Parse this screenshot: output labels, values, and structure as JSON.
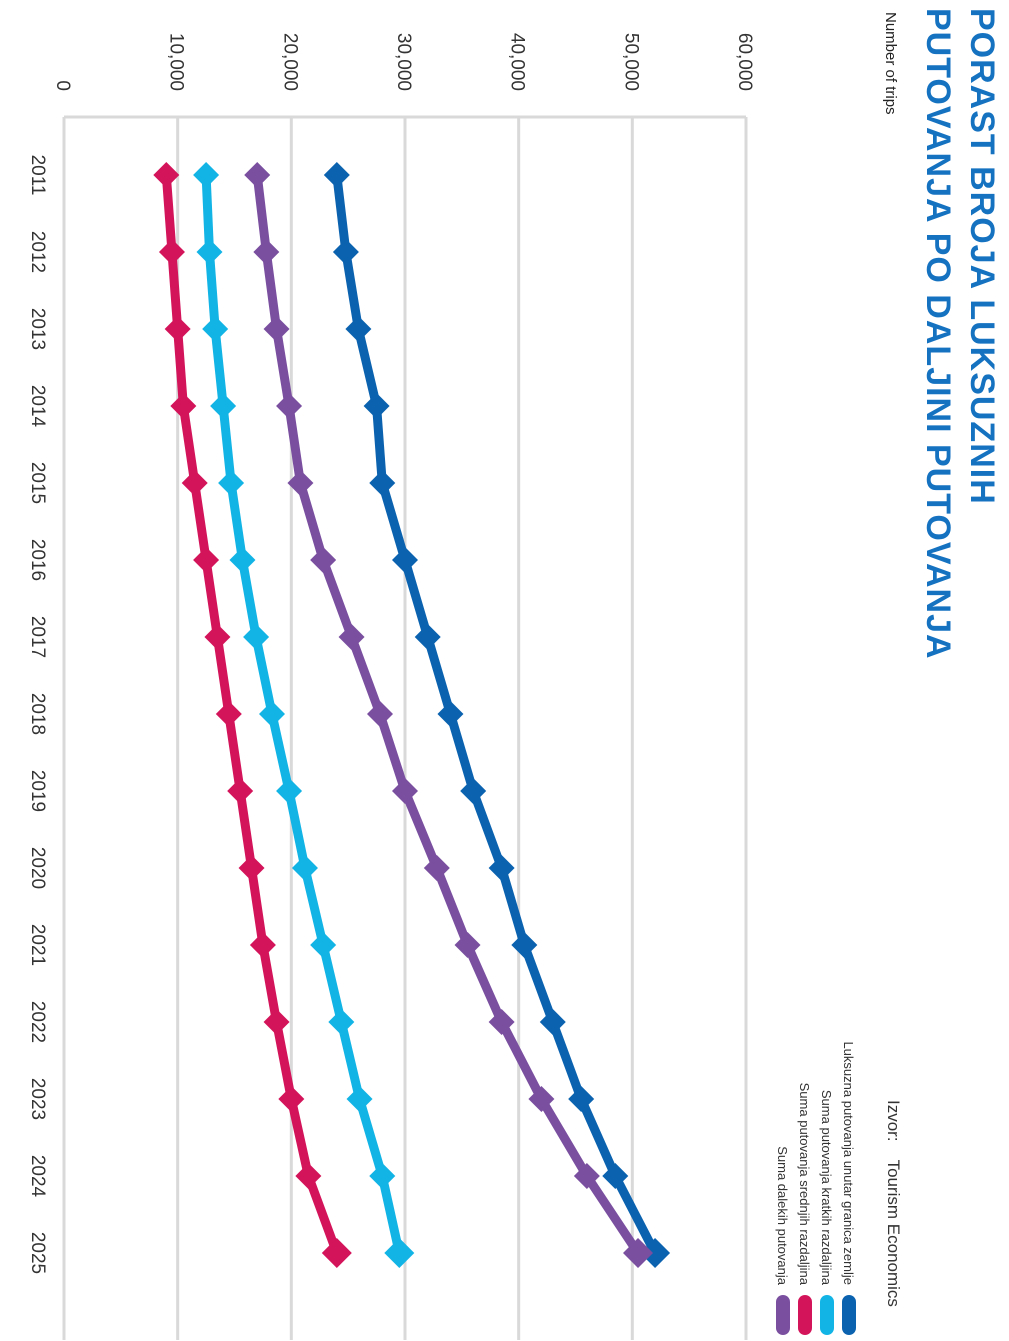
{
  "chart_data": {
    "type": "line",
    "title": "PORAST BROJA LUKSUZNIH PUTOVANJA PO DALJINI PUTOVANJA",
    "title_lines": [
      "PORAST BROJA LUKSUZNIH",
      "PUTOVANJA PO DALJINI PUTOVANJA"
    ],
    "ylabel": "Number of trips",
    "xlabel": "",
    "source_label": "Izvor:",
    "source_value": "Tourism Economics",
    "categories": [
      "2011",
      "2012",
      "2013",
      "2014",
      "2015",
      "2016",
      "2017",
      "2018",
      "2019",
      "2020",
      "2021",
      "2022",
      "2023",
      "2024",
      "2025"
    ],
    "yticks": [
      0,
      10000,
      20000,
      30000,
      40000,
      50000,
      60000
    ],
    "ytick_labels": [
      "0",
      "10,000",
      "20,000",
      "30,000",
      "40,000",
      "50,000",
      "60,000"
    ],
    "ylim": [
      0,
      60000
    ],
    "grid": true,
    "legend_position": "right",
    "series": [
      {
        "name": "Luksuzna putovanja unutar granica zemlje",
        "color": "#0b63b0",
        "values": [
          24000,
          24800,
          25900,
          27500,
          28000,
          30000,
          32000,
          34000,
          36000,
          38500,
          40500,
          43000,
          45500,
          48500,
          52000
        ]
      },
      {
        "name": "Suma putovanja kratkih razdaljina",
        "color": "#12b4e6",
        "values": [
          12500,
          12800,
          13300,
          14000,
          14700,
          15700,
          16900,
          18300,
          19800,
          21200,
          22800,
          24400,
          26000,
          28000,
          29500
        ]
      },
      {
        "name": "Suma putovanja srednjih razdaljina",
        "color": "#d4145a",
        "values": [
          9000,
          9500,
          10000,
          10500,
          11500,
          12500,
          13500,
          14500,
          15500,
          16500,
          17500,
          18700,
          20000,
          21500,
          24000
        ]
      },
      {
        "name": "Suma dalekih putovanja",
        "color": "#7a4fa0",
        "values": [
          17000,
          17800,
          18700,
          19800,
          20800,
          22800,
          25300,
          27800,
          30000,
          32800,
          35500,
          38500,
          42000,
          46000,
          50500
        ]
      }
    ]
  }
}
